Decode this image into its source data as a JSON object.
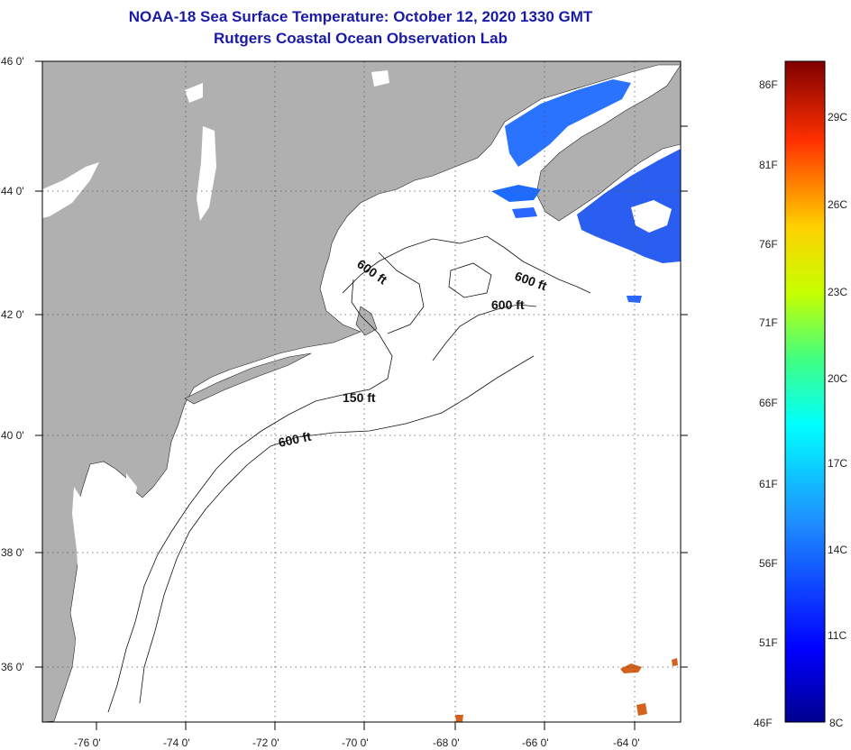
{
  "header": {
    "title_line1": "NOAA-18 Sea Surface Temperature:  October 12, 2020 1330 GMT",
    "title_line2": "Rutgers Coastal Ocean Observation Lab"
  },
  "map": {
    "lat_labels": [
      "46 0'",
      "44 0'",
      "42 0'",
      "40 0'",
      "38 0'",
      "36 0'"
    ],
    "lon_labels": [
      "-76 0'",
      "-74 0'",
      "-72 0'",
      "-70 0'",
      "-68 0'",
      "-66 0'",
      "-64 0'"
    ],
    "depth_labels": [
      "600 ft",
      "600 ft",
      "600 ft",
      "150 ft",
      "600 ft"
    ],
    "colors": {
      "land": "#b0b0b0",
      "cloud": "#ffffff",
      "sst_cold": "#1e6cff",
      "sst_warm": "#d4621c",
      "grid": "#555555"
    }
  },
  "colorbar": {
    "fahrenheit": [
      "86F",
      "81F",
      "76F",
      "71F",
      "66F",
      "61F",
      "56F",
      "51F",
      "46F"
    ],
    "celsius": [
      "29C",
      "26C",
      "23C",
      "20C",
      "17C",
      "14C",
      "11C",
      "8C"
    ]
  }
}
